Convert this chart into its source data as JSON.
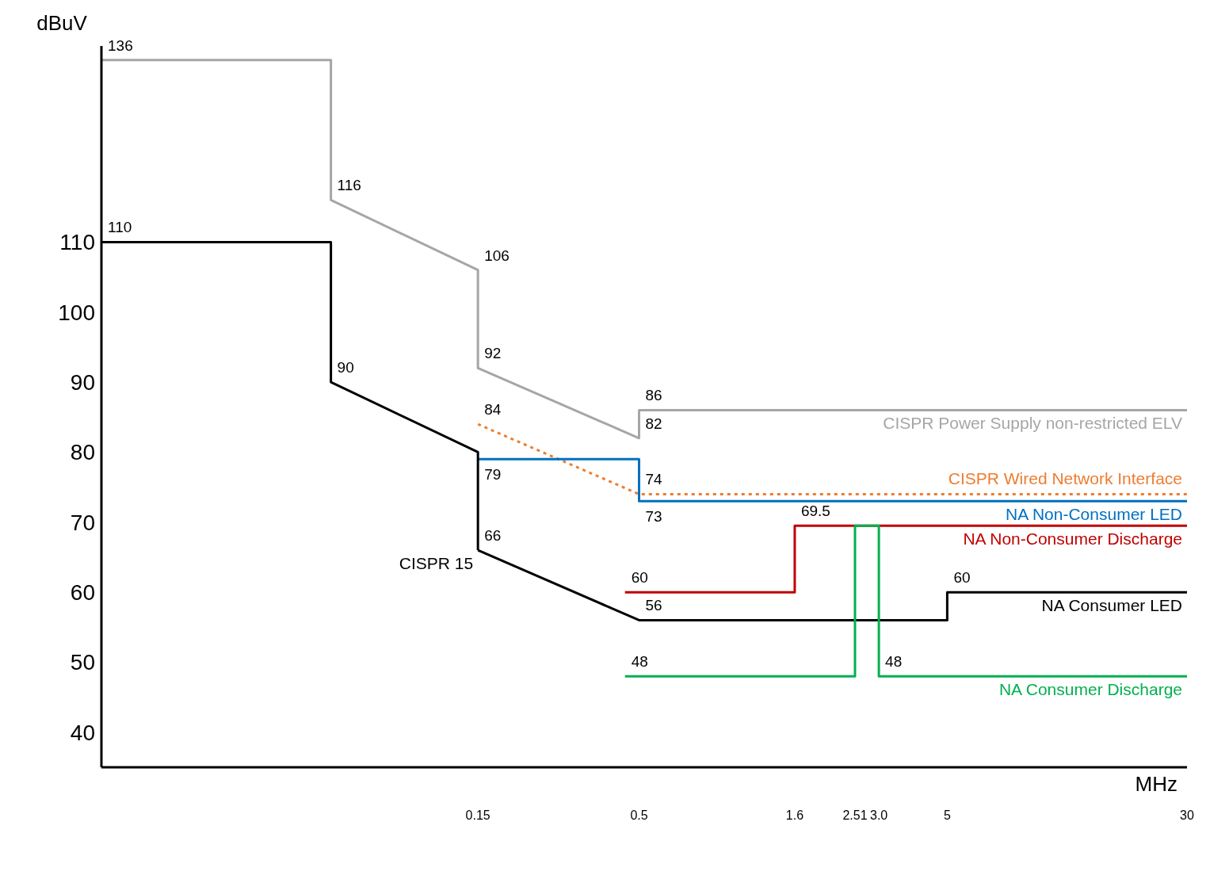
{
  "chart_data": {
    "type": "line",
    "ylabel": "dBuV",
    "xlabel": "MHz",
    "xlim": [
      0.009,
      30
    ],
    "xticks": [
      0.15,
      0.5,
      1.6,
      2.51,
      {
        "value": 3,
        "label": "3.0"
      },
      5,
      30
    ],
    "ylim": [
      35,
      138
    ],
    "yticks": [
      40,
      50,
      60,
      70,
      80,
      90,
      100,
      110
    ],
    "marker": "none",
    "log": "x",
    "series": [
      {
        "name": "CISPR Power Supply non-restricted ELV",
        "color": "#a6a6a6",
        "x": [
          0.009,
          0.05,
          0.05,
          0.15,
          0.15,
          0.5,
          0.5,
          30
        ],
        "values": [
          136,
          136,
          116,
          106,
          92,
          82,
          86,
          86
        ],
        "value_labels": [
          "136",
          null,
          "116",
          "106",
          "92",
          "82",
          "86",
          null
        ]
      },
      {
        "name": "CISPR Wired Network Interface",
        "color": "#ed7d31",
        "line_style": "dotted",
        "x": [
          0.15,
          0.5,
          30
        ],
        "values": [
          84,
          74,
          74
        ],
        "value_labels": [
          "84",
          "74",
          null
        ]
      },
      {
        "name": "NA Non-Consumer LED",
        "color": "#0070c0",
        "x": [
          0.15,
          0.5,
          0.5,
          30
        ],
        "values": [
          79,
          79,
          73,
          73
        ],
        "value_labels": [
          "79",
          null,
          "73",
          null
        ]
      },
      {
        "name": "NA Non-Consumer Discharge",
        "color": "#c00000",
        "x": [
          0.45,
          1.6,
          1.6,
          30
        ],
        "values": [
          60,
          60,
          69.5,
          69.5
        ],
        "value_labels": [
          "60",
          null,
          "69.5",
          null
        ]
      },
      {
        "name": "NA Consumer LED",
        "color": "#000000",
        "x": [
          0.15,
          0.5,
          5,
          5,
          30
        ],
        "values": [
          66,
          56,
          56,
          60,
          60
        ],
        "value_labels": [
          "66",
          "56",
          null,
          "60",
          null
        ]
      },
      {
        "name": "NA Consumer Discharge",
        "color": "#00b050",
        "x": [
          0.45,
          2.51,
          2.51,
          3,
          3,
          30
        ],
        "values": [
          48,
          48,
          69.5,
          69.5,
          48,
          48
        ],
        "value_labels": [
          "48",
          null,
          null,
          null,
          "48",
          null
        ]
      },
      {
        "name": "CISPR 15",
        "color": "#000000",
        "x": [
          0.009,
          0.05,
          0.05,
          0.15,
          0.15
        ],
        "values": [
          110,
          110,
          90,
          80,
          66
        ],
        "value_labels": [
          "110",
          null,
          "90",
          null,
          null
        ]
      }
    ]
  }
}
